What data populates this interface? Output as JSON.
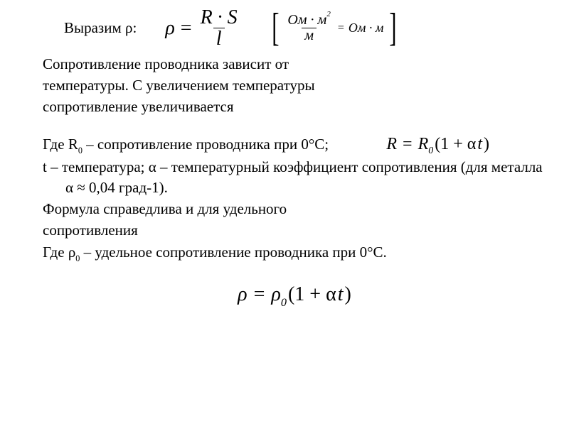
{
  "colors": {
    "text": "#000000",
    "background": "#ffffff"
  },
  "typography": {
    "body_fontsize_pt": 16,
    "formula_fontsize_pt": 21,
    "family": "Times New Roman"
  },
  "intro": "Выразим ρ:",
  "formula1": {
    "lhs": "ρ",
    "eq": "=",
    "num": "R · S",
    "den": "l"
  },
  "dimension": {
    "lbracket": "[",
    "frac_num": "Ом · м",
    "frac_num_sup": "2",
    "frac_den": "м",
    "eq": "=",
    "rhs": "Ом · м",
    "rbracket": "]"
  },
  "para1_l1": "Сопротивление проводника зависит от",
  "para1_l2": "температуры. С увеличением температуры",
  "para1_l3": "сопротивление увеличивается",
  "para2_l1_a": "Где R",
  "para2_l1_a_sub": "0",
  "para2_l1_b": " – сопротивление проводника при 0°С;",
  "eq2": {
    "R": "R",
    "eq": " = ",
    "R0": "R",
    "R0_sub": "0",
    "paren": "(1 + α",
    "t": "t",
    "close": ")"
  },
  "para2_l2": "t – температура; α – температурный коэффициент сопротивления (для металла α ≈ 0,04 град-1).",
  "para3_l1": "Формула справедлива и для удельного",
  "para3_l2": "сопротивления",
  "para4_a": "Где ρ",
  "para4_sub": "0",
  "para4_b": " – удельное сопротивление проводника при 0°С.",
  "eq3": {
    "rho": "ρ",
    "eq": " = ",
    "rho0": "ρ",
    "rho0_sub": "0",
    "paren": "(1 + α",
    "t": "t",
    "close": ")"
  }
}
